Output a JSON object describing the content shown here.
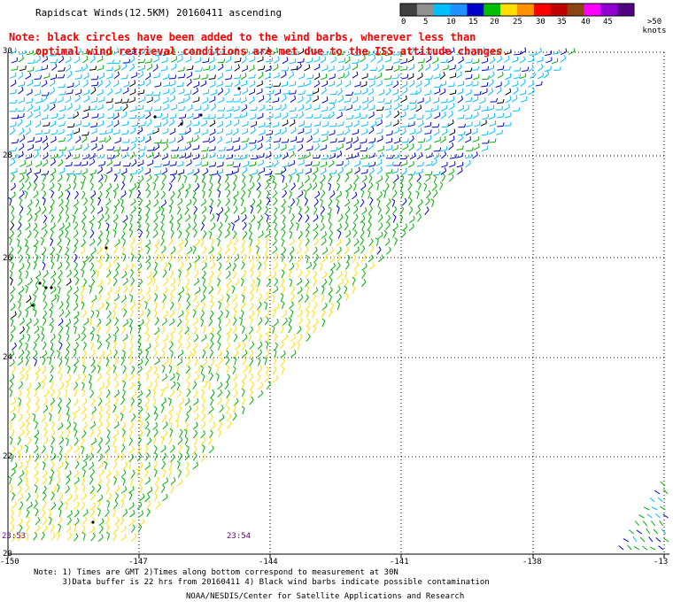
{
  "header": {
    "title": "Rapidscat Winds(12.5KM) 20160411 ascending"
  },
  "notice": {
    "line1": "Note: black circles have been added to the wind barbs, wherever less than",
    "line2": "optimal wind retrieval conditions are met due to the ISS attitude changes."
  },
  "legend": {
    "labels": [
      "0",
      "5",
      "10",
      "15",
      "20",
      "25",
      "30",
      "35",
      "40",
      "45",
      ">50 knots"
    ],
    "colors": [
      "#404040",
      "#909090",
      "#00bfff",
      "#1e90ff",
      "#0000cd",
      "#00c000",
      "#ffe000",
      "#ff9000",
      "#ff0000",
      "#c00000",
      "#8b4513",
      "#ff00ff",
      "#9000d0",
      "#500080"
    ]
  },
  "map": {
    "lat_labels": [
      "30",
      "28",
      "26",
      "24",
      "22",
      "20"
    ],
    "lon_labels": [
      "-150",
      "-147",
      "-144",
      "-141",
      "-138",
      "-13"
    ],
    "time_labels": [
      "23:53",
      "23:54"
    ],
    "barb_colors": {
      "black": "#000000",
      "cyan": "#00bfff",
      "blue": "#0000cd",
      "green": "#00b000",
      "yellow": "#ffe000"
    }
  },
  "footer": {
    "notes_line1": "Note: 1) Times are GMT 2)Times along bottom correspond to measurement at 30N",
    "notes_line2": "      3)Data buffer is 22 hrs from 20160411 4) Black wind barbs indicate possible contamination",
    "credit": "NOAA/NESDIS/Center for Satellite Applications and Research"
  }
}
